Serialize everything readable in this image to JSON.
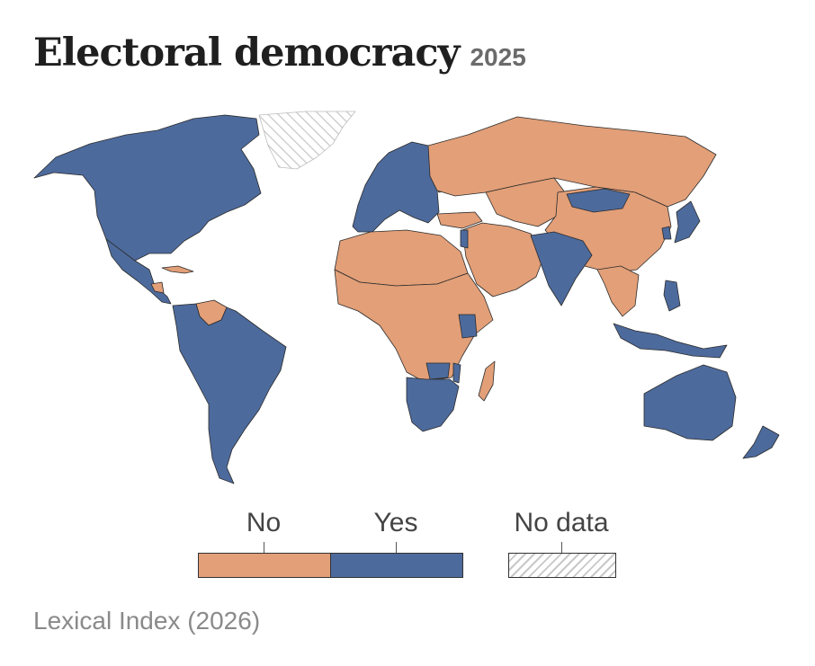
{
  "header": {
    "title": "Electoral democracy",
    "year": "2025"
  },
  "colors": {
    "no": "#e29f78",
    "yes": "#4d6a9c",
    "no_data": "#ffffff",
    "hatch": "#c8c8c8",
    "border": "#2b2b2b"
  },
  "legend": {
    "items": [
      {
        "label": "No",
        "color_key": "no"
      },
      {
        "label": "Yes",
        "color_key": "yes"
      },
      {
        "label": "No data",
        "color_key": "no_data"
      }
    ]
  },
  "map": {
    "projection": "world (Robinson-like)",
    "category_by_region": {
      "North America": "Yes",
      "Central America": "Yes",
      "Cuba": "No",
      "Nicaragua": "No",
      "Venezuela": "No",
      "South America": "Yes",
      "Greenland": "No data",
      "Western and Central Europe": "Yes",
      "Belarus": "No",
      "Russia": "No",
      "Turkey": "No",
      "Middle East": "No",
      "Israel": "Yes",
      "Central Asia": "No",
      "China": "No",
      "Mongolia": "Yes",
      "India": "Yes",
      "Japan": "Yes",
      "South Korea": "Yes",
      "Southeast Asia mainland": "No",
      "Indonesia": "Yes",
      "Philippines": "Yes",
      "Australia": "Yes",
      "New Zealand": "Yes",
      "North Africa": "No",
      "West and Central Africa": "No",
      "Kenya": "Yes",
      "Zambia": "Yes",
      "Malawi": "Yes",
      "Southern Africa": "Yes",
      "Madagascar": "No"
    }
  },
  "source": "Lexical Index (2026)"
}
